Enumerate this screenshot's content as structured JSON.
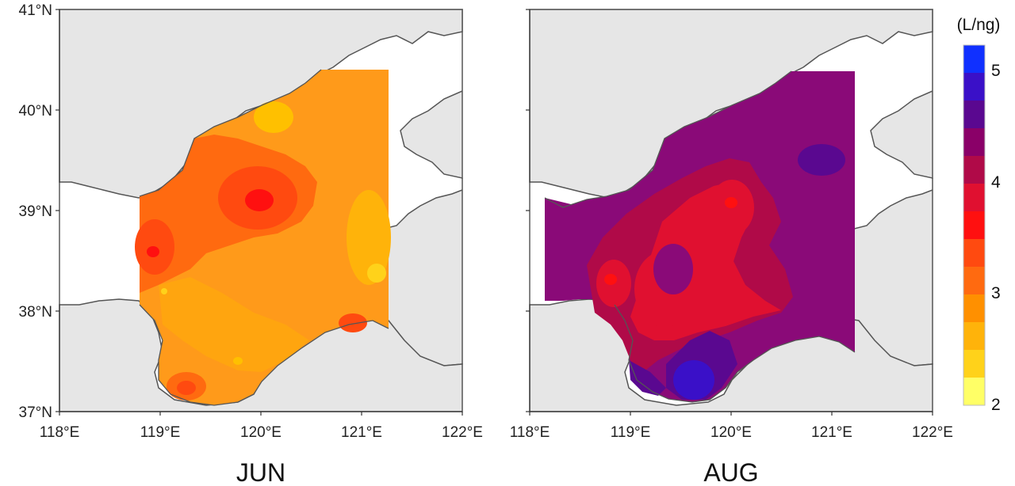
{
  "axes": {
    "lat_ticks": [
      "41°N",
      "40°N",
      "39°N",
      "38°N",
      "37°N"
    ],
    "lon_ticks": [
      "118°E",
      "119°E",
      "120°E",
      "121°E",
      "122°E"
    ]
  },
  "panels": [
    {
      "id": "jun",
      "title": "JUN"
    },
    {
      "id": "aug",
      "title": "AUG"
    }
  ],
  "colorbar": {
    "unit": "(L/ng)",
    "tick_labels": [
      "5",
      "4",
      "3",
      "2"
    ],
    "levels": [
      {
        "value": 2.0,
        "color": "#ffff66"
      },
      {
        "value": 2.25,
        "color": "#ffd21a"
      },
      {
        "value": 2.5,
        "color": "#ffb30a"
      },
      {
        "value": 2.75,
        "color": "#ff9000"
      },
      {
        "value": 3.0,
        "color": "#ff6a10"
      },
      {
        "value": 3.25,
        "color": "#ff4a10"
      },
      {
        "value": 3.5,
        "color": "#ff1010"
      },
      {
        "value": 3.75,
        "color": "#e01030"
      },
      {
        "value": 4.0,
        "color": "#b00a48"
      },
      {
        "value": 4.25,
        "color": "#8a0068"
      },
      {
        "value": 4.5,
        "color": "#5a0890"
      },
      {
        "value": 4.75,
        "color": "#3a10c8"
      },
      {
        "value": 5.0,
        "color": "#1030ff"
      }
    ]
  },
  "colors": {
    "land": "#e6e6e6",
    "coastline": "#555555",
    "jun_base": "#ff9a1a",
    "aug_base": "#8a0a78"
  }
}
